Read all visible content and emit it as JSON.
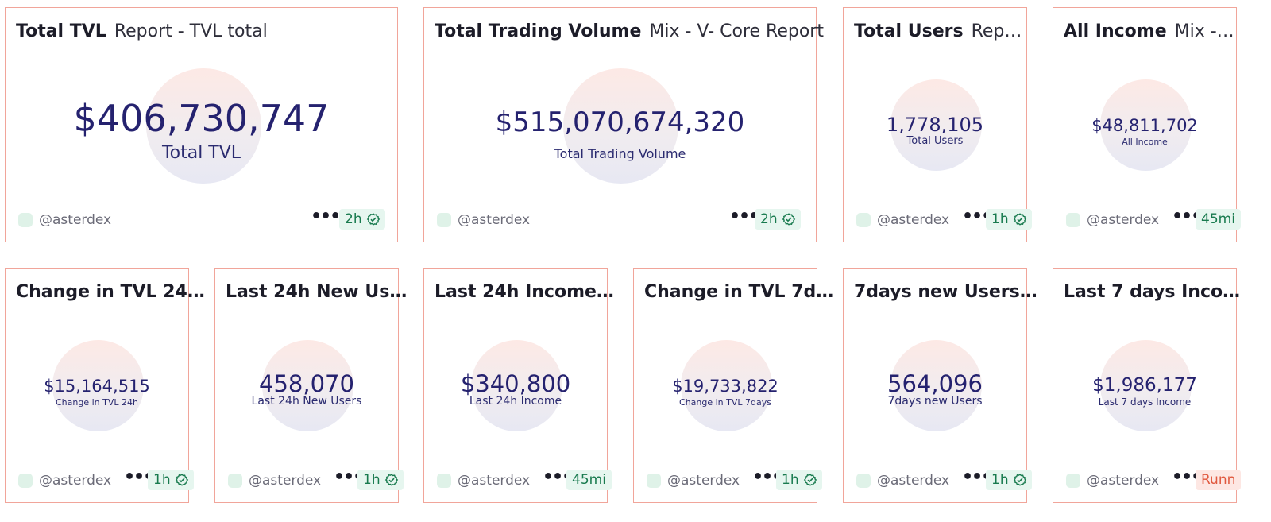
{
  "cards": [
    {
      "title": "Total TVL",
      "subtitle": "Report - TVL total",
      "value": "$406,730,747",
      "label": "Total TVL",
      "user": "@asterdex",
      "more": "•••",
      "badge": "2h"
    },
    {
      "title": "Total Trading Volume",
      "subtitle": "Mix - V- Core Report",
      "value": "$515,070,674,320",
      "label": "Total Trading Volume",
      "user": "@asterdex",
      "more": "•••",
      "badge": "2h"
    },
    {
      "title": "Total Users",
      "subtitle": "Rep…",
      "value": "1,778,105",
      "label": "Total Users",
      "user": "@asterdex",
      "more": "•••",
      "badge": "1h"
    },
    {
      "title": "All Income",
      "subtitle": "Mix -…",
      "value": "$48,811,702",
      "label": "All Income",
      "user": "@asterdex",
      "more": "•••",
      "badge": "45mi"
    },
    {
      "title": "Change in TVL 24…",
      "subtitle": "",
      "value": "$15,164,515",
      "label": "Change in TVL 24h",
      "user": "@asterdex",
      "more": "•••",
      "badge": "1h"
    },
    {
      "title": "Last 24h New Us…",
      "subtitle": "",
      "value": "458,070",
      "label": "Last 24h New Users",
      "user": "@asterdex",
      "more": "•••",
      "badge": "1h"
    },
    {
      "title": "Last 24h Income…",
      "subtitle": "",
      "value": "$340,800",
      "label": "Last 24h Income",
      "user": "@asterdex",
      "more": "•••",
      "badge": "45mi"
    },
    {
      "title": "Change in TVL 7d…",
      "subtitle": "",
      "value": "$19,733,822",
      "label": "Change in TVL 7days",
      "user": "@asterdex",
      "more": "•••",
      "badge": "1h"
    },
    {
      "title": "7days new Users…",
      "subtitle": "",
      "value": "564,096",
      "label": "7days new Users",
      "user": "@asterdex",
      "more": "•••",
      "badge": "1h"
    },
    {
      "title": "Last 7 days Inco…",
      "subtitle": "",
      "value": "$1,986,177",
      "label": "Last 7 days Income",
      "user": "@asterdex",
      "more": "•••",
      "badge": "Runn"
    }
  ],
  "colors": {
    "border": "#f1a59a",
    "value": "#25226f",
    "badge_bg": "#e6f6ef",
    "badge_fg": "#187a4e",
    "running_bg": "#fde7e3",
    "running_fg": "#e0593f"
  }
}
